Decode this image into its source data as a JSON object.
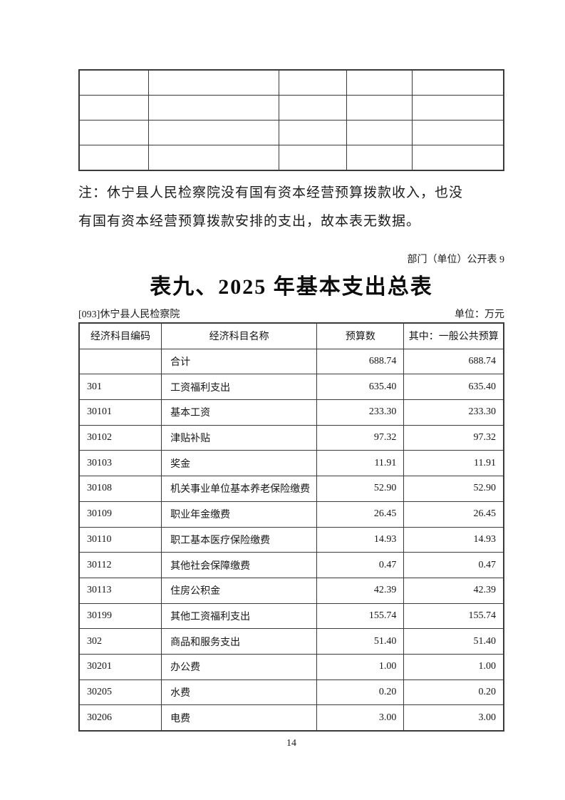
{
  "page": {
    "publish_label": "部门（单位）公开表 9",
    "title": "表九、2025 年基本支出总表",
    "org_name": "[093]休宁县人民检察院",
    "unit_label": "单位：万元",
    "note_line1": "注：休宁县人民检察院没有国有资本经营预算拨款收入，也没",
    "note_line2": "有国有资本经营预算拨款安排的支出，故本表无数据。",
    "page_number": "14"
  },
  "empty_table": {
    "rows": 4,
    "cols": 5
  },
  "budget_table": {
    "headers": [
      "经济科目编码",
      "经济科目名称",
      "预算数",
      "其中：一般公共预算"
    ],
    "rows": [
      [
        "",
        "合计",
        "688.74",
        "688.74"
      ],
      [
        "301",
        "工资福利支出",
        "635.40",
        "635.40"
      ],
      [
        "30101",
        "基本工资",
        "233.30",
        "233.30"
      ],
      [
        "30102",
        "津贴补贴",
        "97.32",
        "97.32"
      ],
      [
        "30103",
        "奖金",
        "11.91",
        "11.91"
      ],
      [
        "30108",
        "机关事业单位基本养老保险缴费",
        "52.90",
        "52.90"
      ],
      [
        "30109",
        "职业年金缴费",
        "26.45",
        "26.45"
      ],
      [
        "30110",
        "职工基本医疗保险缴费",
        "14.93",
        "14.93"
      ],
      [
        "30112",
        "其他社会保障缴费",
        "0.47",
        "0.47"
      ],
      [
        "30113",
        "住房公积金",
        "42.39",
        "42.39"
      ],
      [
        "30199",
        "其他工资福利支出",
        "155.74",
        "155.74"
      ],
      [
        "302",
        "商品和服务支出",
        "51.40",
        "51.40"
      ],
      [
        "30201",
        "办公费",
        "1.00",
        "1.00"
      ],
      [
        "30205",
        "水费",
        "0.20",
        "0.20"
      ],
      [
        "30206",
        "电费",
        "3.00",
        "3.00"
      ]
    ]
  },
  "colors": {
    "border": "#3a3a3a",
    "text": "#161616",
    "background": "#ffffff"
  }
}
